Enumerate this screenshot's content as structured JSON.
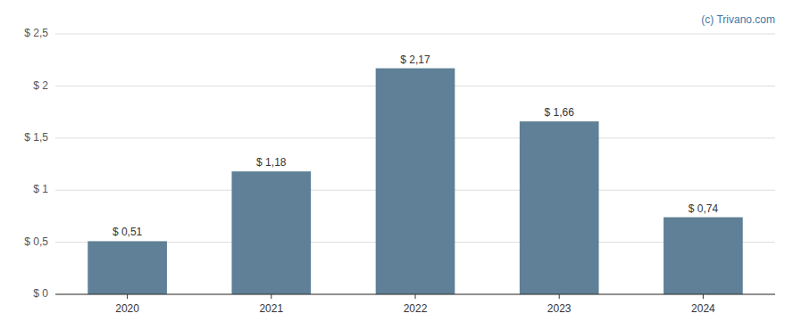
{
  "chart_data": {
    "type": "bar",
    "categories": [
      "2020",
      "2021",
      "2022",
      "2023",
      "2024"
    ],
    "values": [
      0.51,
      1.18,
      2.17,
      1.66,
      0.74
    ],
    "value_labels": [
      "$ 0,51",
      "$ 1,18",
      "$ 2,17",
      "$ 1,66",
      "$ 0,74"
    ],
    "color": "#5f8096",
    "ylim": [
      0,
      2.5
    ],
    "yticks": [
      {
        "value": 0,
        "label": "$ 0"
      },
      {
        "value": 0.5,
        "label": "$ 0,5"
      },
      {
        "value": 1.0,
        "label": "$ 1"
      },
      {
        "value": 1.5,
        "label": "$ 1,5"
      },
      {
        "value": 2.0,
        "label": "$ 2"
      },
      {
        "value": 2.5,
        "label": "$ 2,5"
      }
    ],
    "grid": true,
    "data_labels": true,
    "annotations": [
      "(c) Trivano.com"
    ]
  }
}
